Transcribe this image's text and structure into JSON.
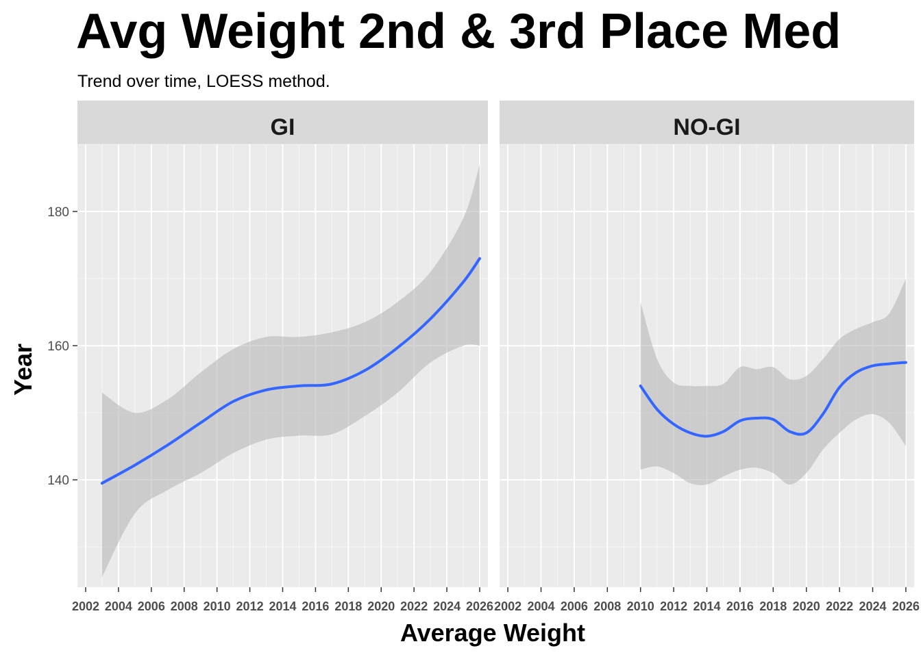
{
  "title": "Avg Weight 2nd & 3rd Place Med",
  "subtitle": "Trend over time, LOESS method.",
  "colors": {
    "panel_background": "#ebebeb",
    "strip_background": "#d9d9d9",
    "grid": "#ffffff",
    "line": "#3366ff",
    "ribbon": "#b3b3b3"
  },
  "chart_data": {
    "type": "line",
    "smoothing": "LOESS",
    "xlabel": "Average Weight",
    "ylabel": "Year",
    "xlim": [
      2001.5,
      2026.5
    ],
    "ylim": [
      124,
      190
    ],
    "x_ticks": [
      2002,
      2004,
      2006,
      2008,
      2010,
      2012,
      2014,
      2016,
      2018,
      2020,
      2022,
      2024,
      2026
    ],
    "y_ticks": [
      140,
      160,
      180
    ],
    "grid": true,
    "panels": [
      {
        "label": "GI",
        "x": [
          2003,
          2005,
          2007,
          2009,
          2011,
          2013,
          2015,
          2017,
          2019,
          2021,
          2023,
          2025,
          2026
        ],
        "fit": [
          139.5,
          142.2,
          145.2,
          148.5,
          151.7,
          153.4,
          154.0,
          154.3,
          156.3,
          159.7,
          164.0,
          169.5,
          173.0
        ],
        "lower": [
          125.5,
          135.0,
          138.5,
          141.0,
          144.0,
          146.0,
          146.6,
          146.8,
          149.5,
          153.0,
          157.5,
          160.0,
          160.0
        ],
        "upper": [
          153.0,
          150.0,
          152.0,
          156.0,
          159.5,
          161.3,
          161.3,
          162.0,
          163.5,
          166.5,
          171.0,
          179.0,
          187.0
        ]
      },
      {
        "label": "NO-GI",
        "x": [
          2010,
          2011,
          2012,
          2013,
          2014,
          2015,
          2016,
          2017,
          2018,
          2019,
          2020,
          2021,
          2022,
          2023,
          2024,
          2025,
          2026
        ],
        "fit": [
          154.0,
          150.5,
          148.3,
          147.0,
          146.5,
          147.2,
          148.8,
          149.2,
          149.0,
          147.2,
          147.0,
          149.8,
          153.8,
          156.0,
          157.0,
          157.3,
          157.5
        ],
        "lower": [
          141.5,
          142.0,
          141.0,
          139.5,
          139.3,
          140.5,
          141.5,
          141.8,
          141.0,
          139.3,
          141.0,
          144.5,
          147.0,
          149.0,
          149.8,
          148.5,
          145.0
        ],
        "upper": [
          166.5,
          158.0,
          154.5,
          154.0,
          154.0,
          154.3,
          156.8,
          156.5,
          156.8,
          155.0,
          155.5,
          158.0,
          161.0,
          162.5,
          163.5,
          164.8,
          170.0
        ]
      }
    ]
  }
}
